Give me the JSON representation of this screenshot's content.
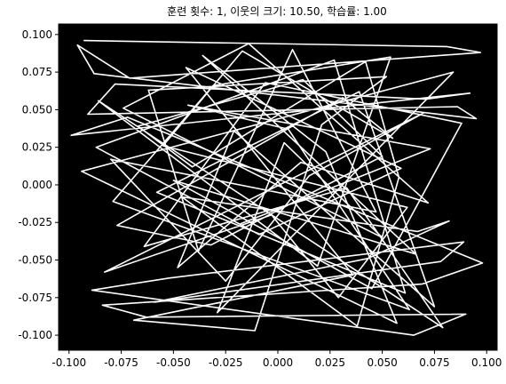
{
  "chart_data": {
    "type": "line",
    "title": "훈련 횟수: 1, 이웃의 크기: 10.50, 학습률: 1.00",
    "xlabel": "",
    "ylabel": "",
    "xlim": [
      -0.105,
      0.105
    ],
    "ylim": [
      -0.11,
      0.107
    ],
    "xticks": [
      "-0.100",
      "-0.075",
      "-0.050",
      "-0.025",
      "0.000",
      "0.025",
      "0.050",
      "0.075",
      "0.100"
    ],
    "yticks": [
      "0.100",
      "0.075",
      "0.050",
      "0.025",
      "0.000",
      "-0.025",
      "-0.050",
      "-0.075",
      "-0.100"
    ],
    "background": "#000000",
    "line_color": "#ffffff",
    "grid": false,
    "series": [
      {
        "x": [
          -0.093,
          0.081,
          0.097,
          -0.071,
          -0.096,
          -0.088,
          0.095,
          0.086,
          -0.091,
          -0.078,
          0.071,
          0.092,
          -0.099,
          -0.072,
          0.098,
          0.069,
          -0.084,
          -0.063,
          0.09,
          0.065,
          -0.089,
          -0.052,
          0.089,
          0.078,
          -0.059,
          0.043,
          0.082,
          0.067,
          -0.046,
          0.038,
          0.058,
          0.042,
          -0.041,
          -0.067,
          0.012,
          0.05,
          -0.032,
          -0.077,
          0.031,
          0.055,
          -0.017,
          -0.055,
          0.062,
          0.029,
          -0.003,
          -0.083,
          0.07,
          0.015,
          -0.025,
          -0.08,
          0.047,
          0.007,
          -0.038,
          -0.062,
          0.052,
          0.021,
          -0.011,
          -0.069,
          0.036,
          -0.044,
          0.059,
          -0.009,
          -0.087,
          0.027,
          0.061,
          -0.058,
          0.039,
          0.075,
          -0.021,
          -0.048,
          0.011,
          0.072,
          -0.014,
          -0.074,
          0.05,
          0.003,
          -0.029,
          0.084,
          -0.094,
          0.057,
          0.023,
          -0.036,
          0.066,
          -0.05,
          0.045,
          0.088,
          -0.006,
          -0.064,
          0.033,
          0.079,
          -0.086,
          0.019,
          0.054,
          -0.031,
          -0.079,
          0.063,
          0.005,
          -0.043,
          0.073,
          -0.018
        ],
        "y": [
          0.096,
          0.092,
          0.088,
          0.071,
          0.093,
          0.074,
          0.044,
          0.052,
          0.047,
          0.067,
          0.057,
          0.061,
          0.033,
          0.045,
          -0.052,
          -0.066,
          -0.08,
          -0.088,
          -0.086,
          -0.1,
          -0.07,
          -0.062,
          -0.038,
          -0.051,
          -0.078,
          -0.049,
          -0.024,
          -0.031,
          -0.008,
          -0.094,
          0.005,
          0.082,
          0.012,
          0.039,
          0.07,
          0.019,
          -0.04,
          -0.027,
          0.058,
          0.031,
          0.089,
          0.026,
          -0.015,
          -0.075,
          -0.02,
          -0.058,
          0.048,
          0.006,
          -0.064,
          0.017,
          -0.018,
          0.09,
          -0.044,
          0.063,
          0.072,
          0.04,
          -0.097,
          -0.09,
          -0.06,
          0.078,
          0.011,
          -0.033,
          0.025,
          0.083,
          -0.072,
          -0.005,
          0.062,
          -0.081,
          0.036,
          -0.055,
          0.015,
          -0.012,
          0.094,
          0.051,
          -0.035,
          0.028,
          -0.085,
          0.075,
          0.009,
          -0.092,
          0.022,
          0.086,
          -0.046,
          0.003,
          -0.069,
          0.041,
          0.068,
          -0.041,
          -0.002,
          -0.095,
          0.056,
          -0.054,
          0.085,
          0.066,
          -0.011,
          -0.083,
          0.037,
          0.053,
          0.024,
          -0.026
        ]
      }
    ]
  }
}
